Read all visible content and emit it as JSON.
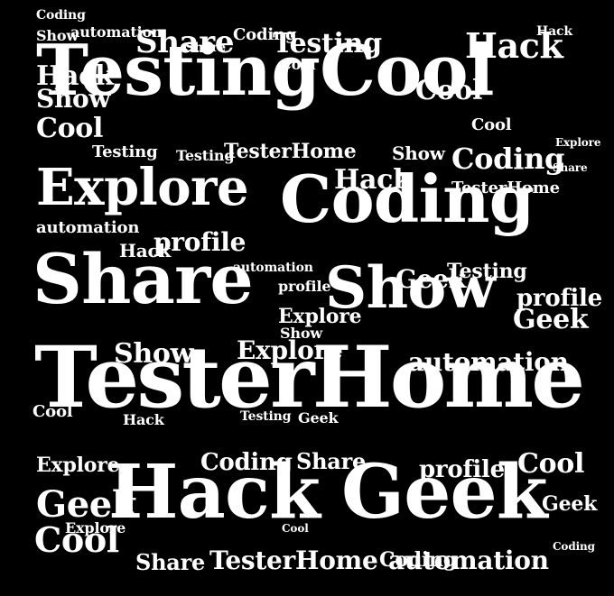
{
  "colors": {
    "background": "#000000",
    "text": "#ffffff"
  },
  "words": [
    "TestingCool",
    "TesterHome",
    "Hack",
    "Geek",
    "Coding",
    "Share",
    "Show",
    "Explore",
    "profile",
    "automation",
    "Testing",
    "Coding",
    "Share",
    "Hack",
    "Cool",
    "Hack",
    "Show",
    "Cool",
    "Coding",
    "TesterHome",
    "Testing",
    "Explore",
    "Hack",
    "TesterHome",
    "Share",
    "Testing",
    "Show",
    "Geek",
    "profile",
    "Coding",
    "Testing",
    "automation",
    "Explore",
    "Show",
    "automation",
    "Testing",
    "profile",
    "Cool",
    "Geek",
    "Explore",
    "Share",
    "Coding",
    "automation",
    "Cool",
    "TesterHome",
    "Show",
    "Geek",
    "Explore",
    "Coding",
    "Hack",
    "Cool",
    "Geek",
    "profile",
    "Cool",
    "Share",
    "automation",
    "Cool",
    "Hack",
    "Show",
    "Geek",
    "Explore",
    "Share",
    "Coding",
    "Hack",
    "Cool"
  ]
}
